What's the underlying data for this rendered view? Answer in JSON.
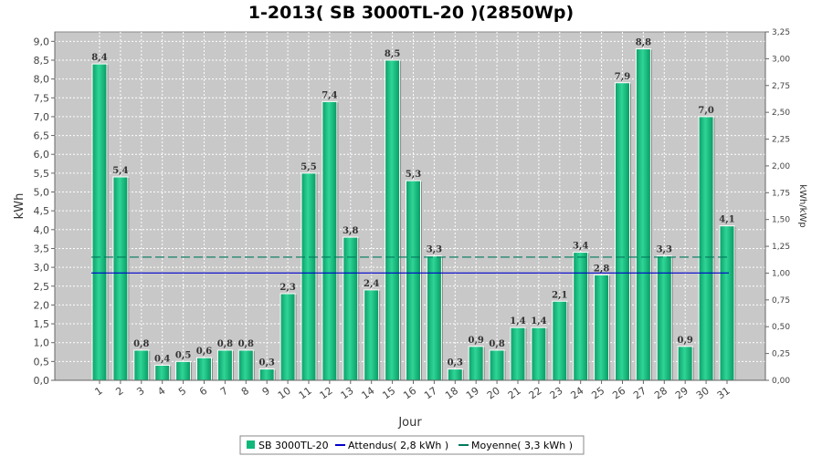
{
  "chart_data": {
    "type": "bar",
    "title": "1-2013( SB 3000TL-20 )(2850Wp)",
    "xlabel": "Jour",
    "ylabel": "kWh",
    "ylabel_right": "kWh/kWp",
    "ylim": [
      0,
      9.25
    ],
    "ylim_right": [
      0,
      3.25
    ],
    "yticks": [
      "0,0",
      "0,5",
      "1,0",
      "1,5",
      "2,0",
      "2,5",
      "3,0",
      "3,5",
      "4,0",
      "4,5",
      "5,0",
      "5,5",
      "6,0",
      "6,5",
      "7,0",
      "7,5",
      "8,0",
      "8,5",
      "9,0"
    ],
    "yticks_right": [
      "0,00",
      "0,25",
      "0,50",
      "0,75",
      "1,00",
      "1,25",
      "1,50",
      "1,75",
      "2,00",
      "2,25",
      "2,50",
      "2,75",
      "3,00",
      "3,25"
    ],
    "categories": [
      "1",
      "2",
      "3",
      "4",
      "5",
      "6",
      "7",
      "8",
      "9",
      "10",
      "11",
      "12",
      "13",
      "14",
      "15",
      "16",
      "17",
      "18",
      "19",
      "20",
      "21",
      "22",
      "23",
      "24",
      "25",
      "26",
      "27",
      "28",
      "29",
      "30",
      "31"
    ],
    "series": [
      {
        "name": "SB 3000TL-20",
        "values": [
          8.4,
          5.4,
          0.8,
          0.4,
          0.5,
          0.6,
          0.8,
          0.8,
          0.3,
          2.3,
          5.5,
          7.4,
          3.8,
          2.4,
          8.5,
          5.3,
          3.3,
          0.3,
          0.9,
          0.8,
          1.4,
          1.4,
          2.1,
          3.4,
          2.8,
          7.9,
          8.8,
          3.3,
          0.9,
          7.0,
          4.1
        ],
        "labels": [
          "8,4",
          "5,4",
          "0,8",
          "0,4",
          "0,5",
          "0,6",
          "0,8",
          "0,8",
          "0,3",
          "2,3",
          "5,5",
          "7,4",
          "3,8",
          "2,4",
          "8,5",
          "5,3",
          "3,3",
          "0,3",
          "0,9",
          "0,8",
          "1,4",
          "1,4",
          "2,1",
          "3,4",
          "2,8",
          "7,9",
          "8,8",
          "3,3",
          "0,9",
          "7,0",
          "4,1"
        ]
      }
    ],
    "reference_lines": [
      {
        "name": "Attendus( 2,8 kWh )",
        "value": 2.85,
        "color": "#0000cc",
        "style": "solid"
      },
      {
        "name": "Moyenne( 3,3 kWh )",
        "value": 3.27,
        "color": "#007a5e",
        "style": "dashed"
      }
    ],
    "legend": {
      "placement": "bottom-center"
    },
    "grid": true
  },
  "colors": {
    "plot_bg": "#c8c8c8",
    "bar_fill": "#0fb87a",
    "bar_light": "#5fe0ae",
    "bar_edge": "#ffffff"
  }
}
